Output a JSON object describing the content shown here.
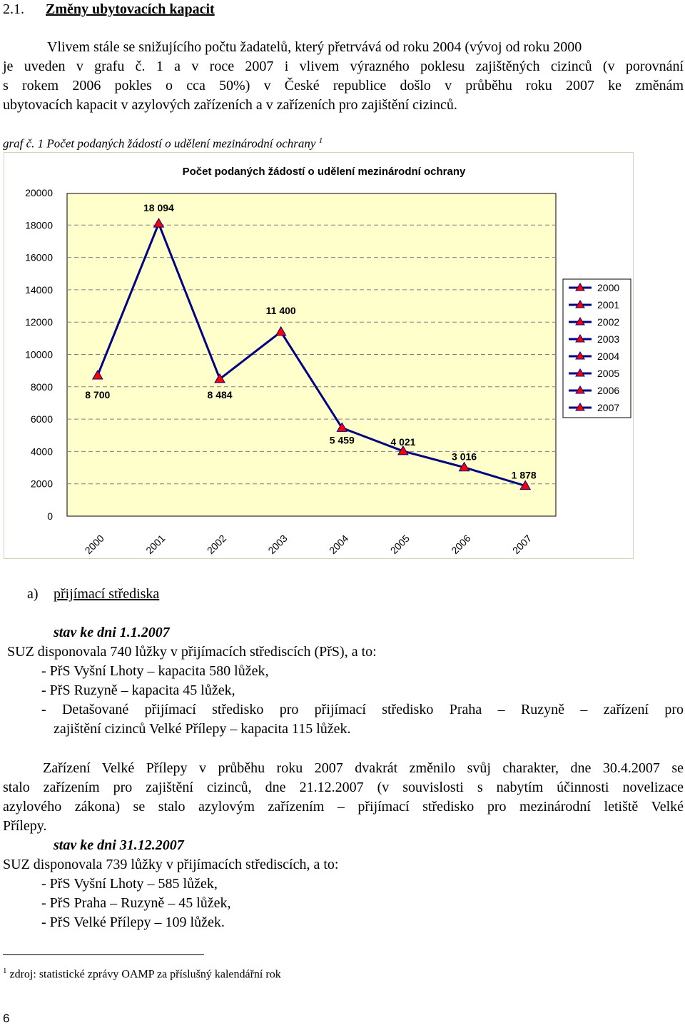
{
  "section": {
    "number": "2.1.",
    "title": "Změny ubytovacích kapacit"
  },
  "intro": {
    "line1": "Vlivem stále se snižujícího počtu žadatelů, který přetrvává od roku 2004 (vývoj od roku 2000",
    "line2": "je uveden v grafu č. 1 a v roce 2007 i vlivem výrazného poklesu zajištěných cizinců (v porovnání",
    "line3": "s rokem 2006 pokles o cca 50%) v České republice došlo v průběhu roku 2007 ke změnám",
    "line4": "ubytovacích kapacit v azylových zařízeních a v zařízeních pro zajištění cizinců."
  },
  "graph_caption": {
    "text": "graf č. 1 Počet podaných žádostí o udělení mezinárodní ochrany",
    "footnote_ref": "1"
  },
  "chart_data": {
    "type": "line",
    "title": "Počet podaných žádostí o udělení mezinárodní ochrany",
    "categories": [
      "2000",
      "2001",
      "2002",
      "2003",
      "2004",
      "2005",
      "2006",
      "2007"
    ],
    "values": [
      8700,
      18094,
      8484,
      11400,
      5459,
      4021,
      3016,
      1878
    ],
    "data_labels": [
      "8 700",
      "18 094",
      "8 484",
      "11 400",
      "5 459",
      "4 021",
      "3 016",
      "1 878"
    ],
    "yticks": [
      "0",
      "2000",
      "4000",
      "6000",
      "8000",
      "10000",
      "12000",
      "14000",
      "16000",
      "18000",
      "20000"
    ],
    "ylim": [
      0,
      20000
    ],
    "legend": [
      "2000",
      "2001",
      "2002",
      "2003",
      "2004",
      "2005",
      "2006",
      "2007"
    ],
    "legend_position": "right",
    "grid": "horizontal dashed",
    "plot_background": "#ffffcc",
    "line_color": "#000080",
    "marker_color": "#ff0000"
  },
  "section_a": {
    "label": "a)",
    "title": "přijímací střediska",
    "stav1": "stav ke dni 1.1.2007",
    "suz1": "SUZ disponovala 740 lůžky v přijímacích střediscích (PřS), a to:",
    "items1": [
      "- PřS Vyšní Lhoty – kapacita 580 lůžek,",
      "- PřS Ruzyně – kapacita 45 lůžek,",
      "- Detašované přijímací středisko pro přijímací středisko Praha – Ruzyně – zařízení pro",
      "zajištění cizinců Velké Přílepy – kapacita 115 lůžek."
    ],
    "para": [
      "Zařízení Velké Přílepy v průběhu roku 2007 dvakrát změnilo svůj charakter, dne 30.4.2007 se",
      "stalo zařízením pro zajištění cizinců, dne 21.12.2007 (v souvislosti s nabytím účinnosti novelizace",
      "azylového zákona) se stalo azylovým zařízením – přijímací středisko pro mezinárodní letiště Velké",
      "Přílepy."
    ],
    "stav2": "stav ke dni 31.12.2007",
    "suz2": "SUZ disponovala 739 lůžky v přijímacích střediscích, a to:",
    "items2": [
      "- PřS Vyšní Lhoty – 585 lůžek,",
      "- PřS Praha – Ruzyně – 45 lůžek,",
      "- PřS Velké Přílepy – 109 lůžek."
    ]
  },
  "footnote": {
    "number": "1",
    "text": "zdroj: statistické zprávy OAMP za příslušný kalendářní rok"
  },
  "page_number": "6"
}
